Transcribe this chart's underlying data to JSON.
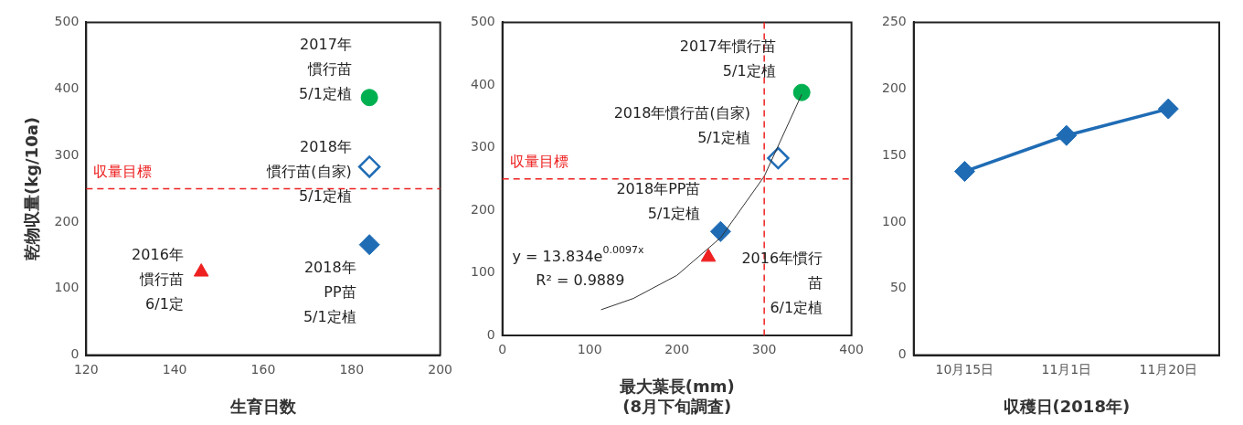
{
  "chart_data": [
    {
      "type": "scatter",
      "ylabel": "乾物収量(kg/10a)",
      "xlabel": "生育日数",
      "xlim": [
        120,
        200
      ],
      "xticks": [
        120,
        140,
        160,
        180,
        200
      ],
      "ylim": [
        0,
        500
      ],
      "yticks": [
        0,
        100,
        200,
        300,
        400,
        500
      ],
      "grid": false,
      "legend": false,
      "series": [
        {
          "color": "#00b050",
          "marker": "circle",
          "x": [
            184
          ],
          "values": [
            387
          ]
        },
        {
          "color": "#1f6cb5",
          "marker": "diamond",
          "x": [
            184
          ],
          "values": [
            283
          ]
        },
        {
          "color": "#1f6cb5",
          "marker": "diamond",
          "x": [
            184
          ],
          "values": [
            166
          ]
        },
        {
          "color": "#ee2020",
          "marker": "triangle",
          "x": [
            146
          ],
          "values": [
            125
          ]
        }
      ],
      "ref_lines": [
        {
          "axis": "y",
          "value": 250,
          "label": "収量目標",
          "color": "#ee2020",
          "line_style": "dashed"
        }
      ],
      "annotations": [
        "2017年慣行苗5/1定植",
        "2018年慣行苗(自家)5/1定植",
        "2018年PP苗5/1定植",
        "2016年慣行苗6/1定"
      ]
    },
    {
      "type": "scatter",
      "xlabel": "最大葉長(mm)\n(8月下旬調査)",
      "xlim": [
        0,
        400
      ],
      "xticks": [
        0,
        100,
        200,
        300,
        400
      ],
      "ylim": [
        0,
        500
      ],
      "yticks": [
        0,
        100,
        200,
        300,
        400,
        500
      ],
      "grid": false,
      "legend": false,
      "series": [
        {
          "type": "line",
          "color": "#333333",
          "marker": "none",
          "x": [
            113,
            150,
            200,
            250,
            300,
            343
          ],
          "values": [
            41,
            59,
            96,
            156,
            254,
            385
          ]
        },
        {
          "color": "#00b050",
          "marker": "circle",
          "x": [
            343
          ],
          "values": [
            388
          ]
        },
        {
          "color": "#1f6cb5",
          "marker": "diamond",
          "x": [
            316
          ],
          "values": [
            283
          ]
        },
        {
          "color": "#1f6cb5",
          "marker": "diamond",
          "x": [
            250
          ],
          "values": [
            166
          ]
        },
        {
          "color": "#ee2020",
          "marker": "triangle",
          "x": [
            236
          ],
          "values": [
            125
          ]
        }
      ],
      "ref_lines": [
        {
          "axis": "y",
          "value": 250,
          "label": "収量目標",
          "color": "#ee2020",
          "line_style": "dashed"
        },
        {
          "axis": "x",
          "value": 300,
          "color": "#ee2020",
          "line_style": "dashed"
        }
      ],
      "annotations": [
        "2017年慣行苗5/1定植",
        "2018年慣行苗(自家)5/1定植",
        "2018年PP苗5/1定植",
        "2016年慣行苗6/1定植",
        "y = 13.834e$^{0.0097x}$",
        "R² = 0.9889"
      ]
    },
    {
      "type": "line",
      "xlabel": "収穫日(2018年)",
      "categories": [
        "10月15日",
        "11月1日",
        "11月20日"
      ],
      "ylim": [
        0,
        250
      ],
      "yticks": [
        0,
        50,
        100,
        150,
        200,
        250
      ],
      "grid": false,
      "legend": false,
      "marker": "diamond",
      "series": [
        {
          "color": "#1f6cb5",
          "values": [
            138,
            165,
            185
          ]
        }
      ]
    }
  ]
}
